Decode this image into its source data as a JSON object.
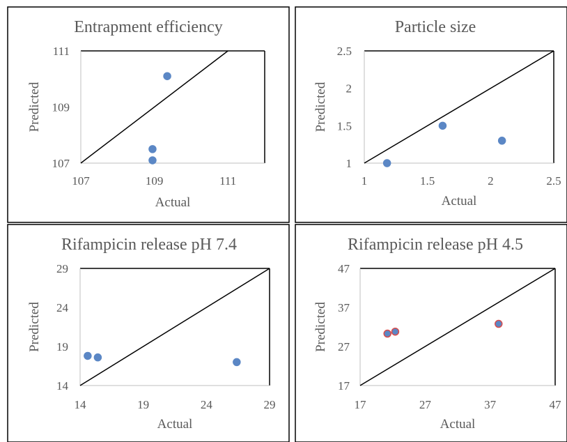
{
  "chart_data": [
    {
      "type": "scatter",
      "title": "Entrapment efficiency",
      "xlabel": "Actual",
      "ylabel": "Predicted",
      "xlim": [
        107,
        112
      ],
      "ylim": [
        107,
        111
      ],
      "xticks": [
        "107",
        "109",
        "111"
      ],
      "yticks": [
        "107",
        "109",
        "111"
      ],
      "reference_line": "y = x",
      "grid": false,
      "colors": {
        "point": "#5b87c5",
        "point_edge": "#5b87c5",
        "line": "#000000"
      },
      "points": [
        {
          "x": 109.35,
          "y": 110.1
        },
        {
          "x": 108.95,
          "y": 107.5
        },
        {
          "x": 108.95,
          "y": 107.1
        }
      ]
    },
    {
      "type": "scatter",
      "title": "Particle size",
      "xlabel": "Actual",
      "ylabel": "Predicted",
      "xlim": [
        1,
        2.5
      ],
      "ylim": [
        1,
        2.5
      ],
      "xticks": [
        "1",
        "1.5",
        "2",
        "2.5"
      ],
      "yticks": [
        "1",
        "1.5",
        "2",
        "2.5"
      ],
      "reference_line": "y = x",
      "grid": false,
      "colors": {
        "point": "#5b87c5",
        "point_edge": "#5b87c5",
        "line": "#000000"
      },
      "points": [
        {
          "x": 1.18,
          "y": 1.0
        },
        {
          "x": 1.62,
          "y": 1.5
        },
        {
          "x": 2.09,
          "y": 1.3
        }
      ]
    },
    {
      "type": "scatter",
      "title": "Rifampicin release  pH 7.4",
      "xlabel": "Actual",
      "ylabel": "Predicted",
      "xlim": [
        14,
        29
      ],
      "ylim": [
        14,
        29
      ],
      "xticks": [
        "14",
        "19",
        "24",
        "29"
      ],
      "yticks": [
        "14",
        "19",
        "24",
        "29"
      ],
      "reference_line": "y = x",
      "grid": false,
      "colors": {
        "point": "#5b87c5",
        "point_edge": "#5b87c5",
        "line": "#000000"
      },
      "points": [
        {
          "x": 14.6,
          "y": 17.8
        },
        {
          "x": 15.4,
          "y": 17.6
        },
        {
          "x": 26.4,
          "y": 17.0
        }
      ]
    },
    {
      "type": "scatter",
      "title": "Rifampicin release pH 4.5",
      "xlabel": "Actual",
      "ylabel": "Predicted",
      "xlim": [
        17,
        47
      ],
      "ylim": [
        17,
        47
      ],
      "xticks": [
        "17",
        "27",
        "37",
        "47"
      ],
      "yticks": [
        "17",
        "27",
        "37",
        "47"
      ],
      "reference_line": "y = x",
      "grid": false,
      "colors": {
        "point": "#5b87c5",
        "point_edge": "#d94b4b",
        "line": "#000000"
      },
      "points": [
        {
          "x": 21.2,
          "y": 30.3
        },
        {
          "x": 22.4,
          "y": 30.8
        },
        {
          "x": 38.3,
          "y": 32.8
        }
      ]
    }
  ]
}
